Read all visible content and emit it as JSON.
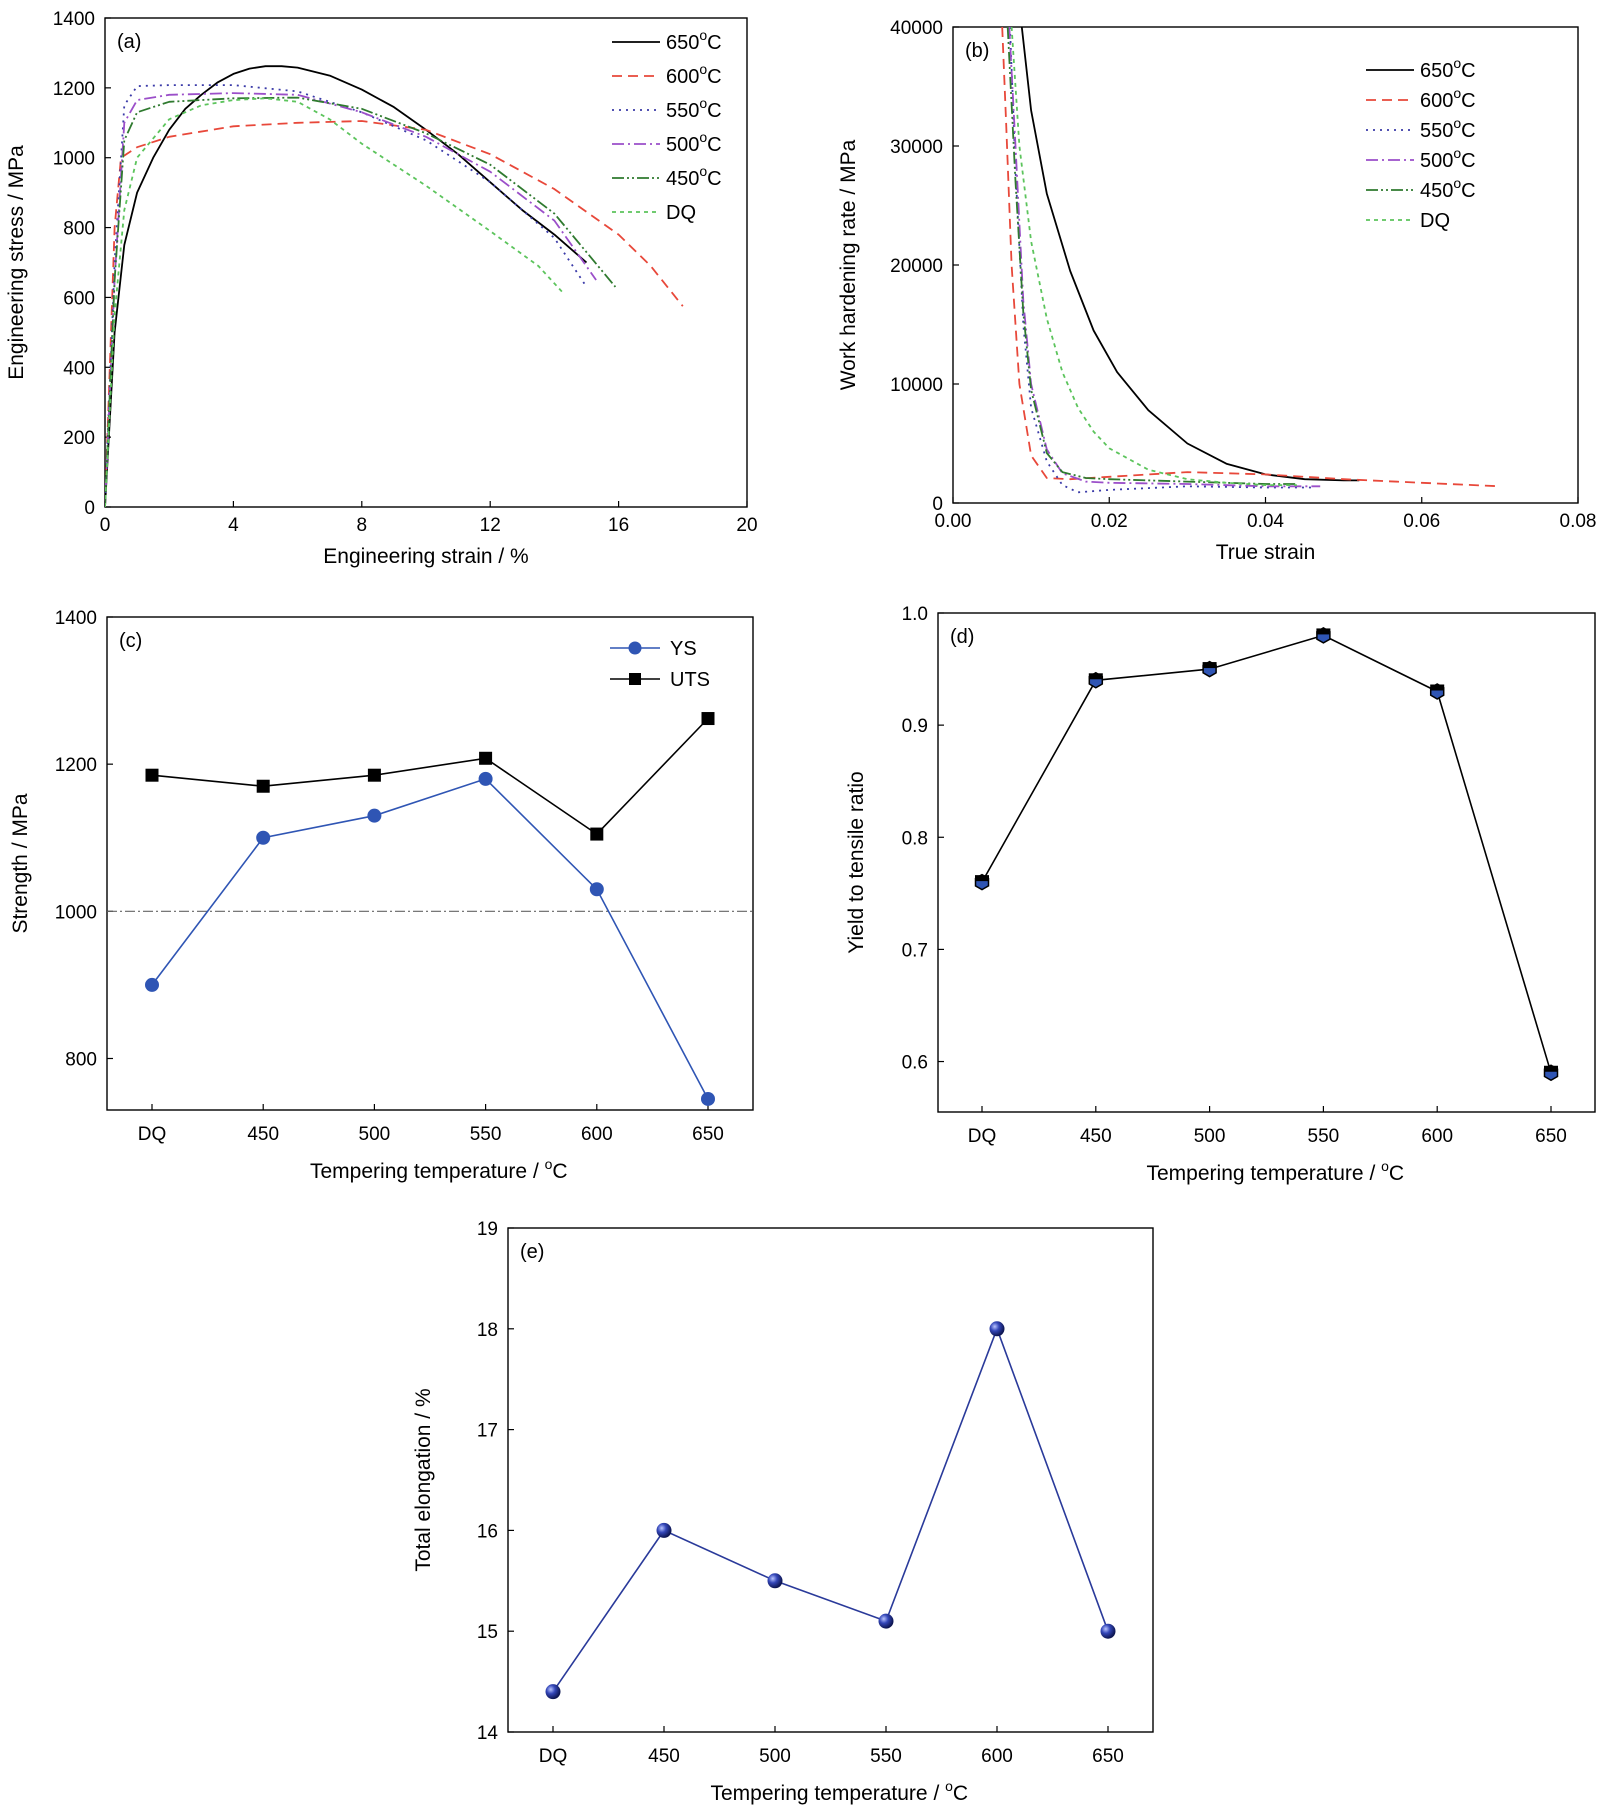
{
  "chart_data": [
    {
      "id": "a",
      "type": "line",
      "tag": "(a)",
      "xlabel": "Engineering strain / %",
      "ylabel": "Engineering stress / MPa",
      "xlim": [
        0,
        20
      ],
      "ylim": [
        0,
        1400
      ],
      "xticks": [
        "0",
        "4",
        "8",
        "12",
        "16",
        "20"
      ],
      "yticks": [
        "0",
        "200",
        "400",
        "600",
        "800",
        "1000",
        "1200",
        "1400"
      ],
      "legend_position": "top-right",
      "series": [
        {
          "name": "650°C",
          "name_base": "650",
          "name_sup": "o",
          "name_unit": "C",
          "color": "#000000",
          "dash": "",
          "x": [
            0,
            0.3,
            0.6,
            1,
            1.5,
            2,
            2.5,
            3,
            3.5,
            4,
            4.5,
            5,
            5.5,
            6,
            7,
            8,
            9,
            10,
            11,
            12,
            13,
            14,
            15
          ],
          "y": [
            0,
            500,
            750,
            900,
            1000,
            1080,
            1140,
            1180,
            1215,
            1240,
            1255,
            1262,
            1262,
            1258,
            1235,
            1195,
            1145,
            1080,
            1010,
            930,
            850,
            780,
            700
          ]
        },
        {
          "name": "600°C",
          "name_base": "600",
          "name_sup": "o",
          "name_unit": "C",
          "color": "#e8483a",
          "dash": "10,6",
          "x": [
            0,
            0.3,
            0.5,
            1,
            2,
            4,
            6,
            8,
            10,
            12,
            14,
            16,
            17,
            18
          ],
          "y": [
            0,
            800,
            1000,
            1030,
            1060,
            1090,
            1100,
            1105,
            1080,
            1010,
            910,
            780,
            690,
            575
          ]
        },
        {
          "name": "550°C",
          "name_base": "550",
          "name_sup": "o",
          "name_unit": "C",
          "color": "#3a3aa8",
          "dash": "2,5",
          "x": [
            0,
            0.3,
            0.6,
            1,
            2,
            4,
            6,
            8,
            10,
            12,
            14,
            15
          ],
          "y": [
            0,
            700,
            1150,
            1205,
            1208,
            1208,
            1190,
            1130,
            1050,
            930,
            770,
            630
          ]
        },
        {
          "name": "500°C",
          "name_base": "500",
          "name_sup": "o",
          "name_unit": "C",
          "color": "#9b4fc9",
          "dash": "12,4,2,4",
          "x": [
            0,
            0.3,
            0.6,
            1,
            2,
            4,
            6,
            8,
            10,
            12,
            14,
            15.3
          ],
          "y": [
            0,
            650,
            1100,
            1165,
            1180,
            1185,
            1180,
            1130,
            1060,
            960,
            820,
            650
          ]
        },
        {
          "name": "450°C",
          "name_base": "450",
          "name_sup": "o",
          "name_unit": "C",
          "color": "#2f7a2f",
          "dash": "12,3,2,3,2,3",
          "x": [
            0,
            0.3,
            0.6,
            1,
            2,
            4,
            6,
            8,
            10,
            12,
            14,
            15.9
          ],
          "y": [
            0,
            650,
            1050,
            1130,
            1160,
            1170,
            1172,
            1140,
            1070,
            980,
            840,
            630
          ]
        },
        {
          "name": "DQ",
          "name_base": "DQ",
          "name_sup": "",
          "name_unit": "",
          "color": "#5cc45c",
          "dash": "4,4",
          "x": [
            0,
            0.3,
            0.6,
            1,
            2,
            3,
            4,
            5,
            6,
            7,
            8,
            10,
            12,
            13.5,
            14.3
          ],
          "y": [
            0,
            550,
            850,
            1000,
            1110,
            1150,
            1165,
            1170,
            1160,
            1110,
            1040,
            920,
            790,
            690,
            610
          ]
        }
      ]
    },
    {
      "id": "b",
      "type": "line",
      "tag": "(b)",
      "xlabel": "True strain",
      "ylabel": "Work hardening rate / MPa",
      "xlim": [
        0,
        0.08
      ],
      "ylim": [
        0,
        40000
      ],
      "xticks": [
        "0.00",
        "0.02",
        "0.04",
        "0.06",
        "0.08"
      ],
      "yticks": [
        "0",
        "10000",
        "20000",
        "30000",
        "40000"
      ],
      "legend_position": "top-right",
      "series": [
        {
          "name": "650°C",
          "name_base": "650",
          "name_sup": "o",
          "name_unit": "C",
          "color": "#000000",
          "dash": "",
          "x": [
            0.0088,
            0.01,
            0.012,
            0.015,
            0.018,
            0.021,
            0.025,
            0.03,
            0.035,
            0.04,
            0.045,
            0.05,
            0.052
          ],
          "y": [
            40000,
            33000,
            26000,
            19500,
            14500,
            11000,
            7800,
            5000,
            3300,
            2400,
            2000,
            1900,
            1900
          ]
        },
        {
          "name": "600°C",
          "name_base": "600",
          "name_sup": "o",
          "name_unit": "C",
          "color": "#e8483a",
          "dash": "10,6",
          "x": [
            0.0063,
            0.0068,
            0.0075,
            0.0085,
            0.01,
            0.012,
            0.015,
            0.02,
            0.03,
            0.04,
            0.05,
            0.06,
            0.07
          ],
          "y": [
            40000,
            32000,
            20000,
            10000,
            4000,
            2100,
            2000,
            2200,
            2600,
            2400,
            2000,
            1700,
            1400
          ]
        },
        {
          "name": "550°C",
          "name_base": "550",
          "name_sup": "o",
          "name_unit": "C",
          "color": "#3a3aa8",
          "dash": "2,5",
          "x": [
            0.0073,
            0.008,
            0.009,
            0.01,
            0.012,
            0.014,
            0.016,
            0.02,
            0.03,
            0.04,
            0.046
          ],
          "y": [
            40000,
            28000,
            15000,
            8000,
            3500,
            1500,
            900,
            1100,
            1400,
            1300,
            1300
          ]
        },
        {
          "name": "500°C",
          "name_base": "500",
          "name_sup": "o",
          "name_unit": "C",
          "color": "#9b4fc9",
          "dash": "12,4,2,4",
          "x": [
            0.0072,
            0.008,
            0.009,
            0.01,
            0.012,
            0.014,
            0.017,
            0.02,
            0.03,
            0.04,
            0.047
          ],
          "y": [
            40000,
            30000,
            17000,
            10000,
            4500,
            2500,
            1800,
            1700,
            1600,
            1400,
            1400
          ]
        },
        {
          "name": "450°C",
          "name_base": "450",
          "name_sup": "o",
          "name_unit": "C",
          "color": "#2f7a2f",
          "dash": "12,3,2,3,2,3",
          "x": [
            0.007,
            0.008,
            0.009,
            0.01,
            0.012,
            0.014,
            0.017,
            0.02,
            0.03,
            0.04,
            0.044
          ],
          "y": [
            40000,
            27000,
            16000,
            9500,
            4200,
            2600,
            2100,
            2000,
            1800,
            1600,
            1600
          ]
        },
        {
          "name": "DQ",
          "name_base": "DQ",
          "name_sup": "",
          "name_unit": "",
          "color": "#5cc45c",
          "dash": "4,4",
          "x": [
            0.0075,
            0.0085,
            0.01,
            0.012,
            0.014,
            0.016,
            0.018,
            0.02,
            0.025,
            0.03,
            0.035,
            0.04,
            0.044
          ],
          "y": [
            40000,
            30000,
            22000,
            15500,
            11000,
            8000,
            6000,
            4600,
            2800,
            2000,
            1700,
            1500,
            1500
          ]
        }
      ]
    },
    {
      "id": "c",
      "type": "line",
      "tag": "(c)",
      "xlabel_base": "Tempering temperature / ",
      "xlabel_sup": "o",
      "xlabel_unit": "C",
      "ylabel": "Strength / MPa",
      "categories": [
        "DQ",
        "450",
        "500",
        "550",
        "600",
        "650"
      ],
      "ylim": [
        730,
        1400
      ],
      "yticks": [
        "800",
        "1000",
        "1200",
        "1400"
      ],
      "reference_line": 1000,
      "legend_position": "top-right",
      "series": [
        {
          "name": "YS",
          "color": "#2f55b4",
          "marker": "circle",
          "values": [
            900,
            1100,
            1130,
            1180,
            1030,
            745
          ]
        },
        {
          "name": "UTS",
          "color": "#000000",
          "marker": "square",
          "values": [
            1185,
            1170,
            1185,
            1208,
            1105,
            1262
          ]
        }
      ]
    },
    {
      "id": "d",
      "type": "line",
      "tag": "(d)",
      "xlabel_base": "Tempering temperature / ",
      "xlabel_sup": "o",
      "xlabel_unit": "C",
      "ylabel": "Yield to tensile ratio",
      "categories": [
        "DQ",
        "450",
        "500",
        "550",
        "600",
        "650"
      ],
      "ylim": [
        0.555,
        1.0
      ],
      "yticks": [
        "0.6",
        "0.7",
        "0.8",
        "0.9",
        "1.0"
      ],
      "series": [
        {
          "color": "#000000",
          "marker": "hexagon",
          "marker_fill": "#2f55b4",
          "values": [
            0.76,
            0.94,
            0.95,
            0.98,
            0.93,
            0.59
          ]
        }
      ]
    },
    {
      "id": "e",
      "type": "line",
      "tag": "(e)",
      "xlabel_base": "Tempering temperature / ",
      "xlabel_sup": "o",
      "xlabel_unit": "C",
      "ylabel": "Total elongation / %",
      "categories": [
        "DQ",
        "450",
        "500",
        "550",
        "600",
        "650"
      ],
      "ylim": [
        14,
        19
      ],
      "yticks": [
        "14",
        "15",
        "16",
        "17",
        "18",
        "19"
      ],
      "series": [
        {
          "color": "#2a3a9a",
          "marker": "sphere",
          "values": [
            14.4,
            16.0,
            15.5,
            15.1,
            18.0,
            15.0
          ]
        }
      ]
    }
  ]
}
